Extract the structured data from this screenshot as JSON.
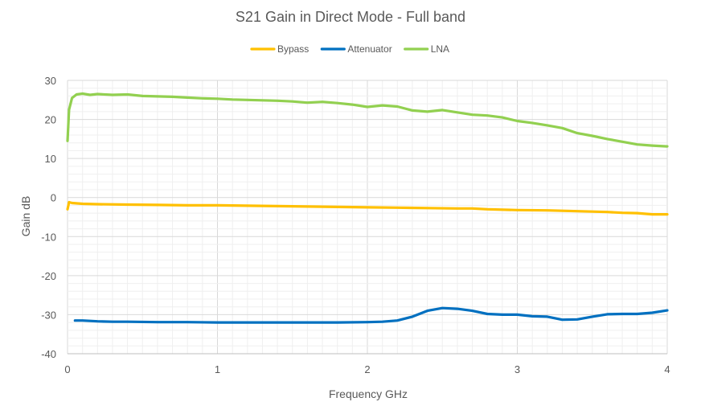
{
  "chart_data": {
    "type": "line",
    "title": "S21 Gain in Direct Mode - Full band",
    "xlabel": "Frequency GHz",
    "ylabel": "Gain dB",
    "xlim": [
      0,
      4
    ],
    "ylim": [
      -40,
      30
    ],
    "x_ticks": [
      "0",
      "1",
      "2",
      "3",
      "4"
    ],
    "y_ticks": [
      "30",
      "20",
      "10",
      "0",
      "-10",
      "-20",
      "-30",
      "-40"
    ],
    "grid": "major and minor",
    "legend_position": "top",
    "series": [
      {
        "name": "Bypass",
        "color": "#FFC000",
        "x": [
          0,
          0.01,
          0.03,
          0.1,
          0.2,
          0.4,
          0.6,
          0.8,
          1.0,
          1.2,
          1.4,
          1.6,
          1.8,
          2.0,
          2.2,
          2.4,
          2.6,
          2.7,
          2.8,
          3.0,
          3.2,
          3.4,
          3.6,
          3.7,
          3.8,
          3.9,
          4.0
        ],
        "values": [
          -3.0,
          -1.2,
          -1.4,
          -1.6,
          -1.7,
          -1.8,
          -1.9,
          -2.0,
          -2.0,
          -2.1,
          -2.2,
          -2.3,
          -2.4,
          -2.5,
          -2.6,
          -2.7,
          -2.8,
          -2.8,
          -3.0,
          -3.2,
          -3.3,
          -3.5,
          -3.7,
          -3.9,
          -4.0,
          -4.3,
          -4.3
        ]
      },
      {
        "name": "Attenuator",
        "color": "#0070C0",
        "x": [
          0.05,
          0.1,
          0.2,
          0.3,
          0.4,
          0.6,
          0.8,
          1.0,
          1.2,
          1.4,
          1.6,
          1.8,
          2.0,
          2.1,
          2.2,
          2.3,
          2.4,
          2.5,
          2.6,
          2.7,
          2.8,
          2.9,
          3.0,
          3.1,
          3.2,
          3.3,
          3.4,
          3.5,
          3.6,
          3.7,
          3.8,
          3.9,
          4.0
        ],
        "values": [
          -31.5,
          -31.5,
          -31.7,
          -31.8,
          -31.8,
          -31.9,
          -31.9,
          -32.0,
          -32.0,
          -32.0,
          -32.0,
          -32.0,
          -31.9,
          -31.8,
          -31.5,
          -30.5,
          -29.0,
          -28.3,
          -28.5,
          -29.0,
          -29.8,
          -30.0,
          -30.0,
          -30.4,
          -30.5,
          -31.3,
          -31.2,
          -30.5,
          -29.9,
          -29.8,
          -29.8,
          -29.5,
          -28.9
        ]
      },
      {
        "name": "LNA",
        "color": "#92D050",
        "x": [
          0,
          0.01,
          0.03,
          0.06,
          0.1,
          0.15,
          0.2,
          0.3,
          0.4,
          0.5,
          0.6,
          0.7,
          0.8,
          0.9,
          1.0,
          1.1,
          1.2,
          1.3,
          1.4,
          1.5,
          1.6,
          1.7,
          1.8,
          1.9,
          2.0,
          2.1,
          2.2,
          2.3,
          2.4,
          2.5,
          2.6,
          2.7,
          2.8,
          2.9,
          3.0,
          3.1,
          3.2,
          3.3,
          3.4,
          3.5,
          3.6,
          3.7,
          3.8,
          3.9,
          4.0
        ],
        "values": [
          14.5,
          22.5,
          25.5,
          26.4,
          26.6,
          26.3,
          26.5,
          26.3,
          26.4,
          26.0,
          25.9,
          25.8,
          25.6,
          25.4,
          25.3,
          25.1,
          25.0,
          24.9,
          24.8,
          24.6,
          24.3,
          24.5,
          24.2,
          23.8,
          23.2,
          23.6,
          23.3,
          22.3,
          22.0,
          22.4,
          21.8,
          21.2,
          21.0,
          20.5,
          19.6,
          19.1,
          18.5,
          17.8,
          16.5,
          15.8,
          15.0,
          14.3,
          13.6,
          13.3,
          13.1
        ]
      }
    ]
  }
}
